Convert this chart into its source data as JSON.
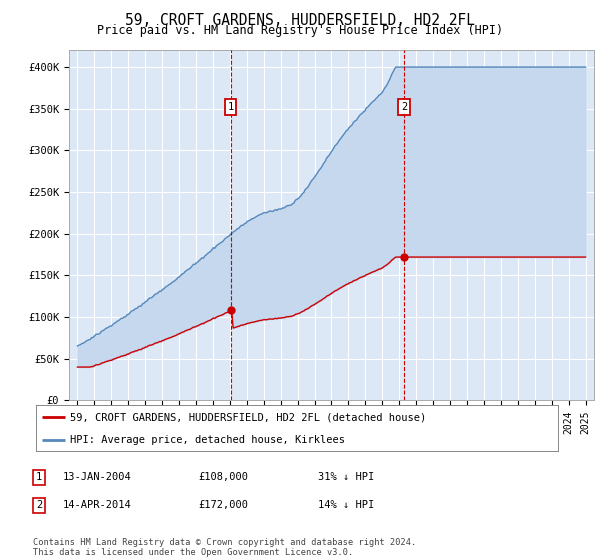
{
  "title": "59, CROFT GARDENS, HUDDERSFIELD, HD2 2FL",
  "subtitle": "Price paid vs. HM Land Registry's House Price Index (HPI)",
  "ylim": [
    0,
    420000
  ],
  "yticks": [
    0,
    50000,
    100000,
    150000,
    200000,
    250000,
    300000,
    350000,
    400000
  ],
  "ytick_labels": [
    "£0",
    "£50K",
    "£100K",
    "£150K",
    "£200K",
    "£250K",
    "£300K",
    "£350K",
    "£400K"
  ],
  "background_color": "#ffffff",
  "plot_bg_color": "#dce8f5",
  "grid_color": "#ffffff",
  "sale1_yr": 2004.04,
  "sale1_price": 108000,
  "sale2_yr": 2014.29,
  "sale2_price": 172000,
  "red_line_color": "#cc0000",
  "blue_line_color": "#5588bb",
  "fill_color": "#c5d8ee",
  "annotation_box_color": "#cc0000",
  "footer_text": "Contains HM Land Registry data © Crown copyright and database right 2024.\nThis data is licensed under the Open Government Licence v3.0.",
  "legend_entry1": "59, CROFT GARDENS, HUDDERSFIELD, HD2 2FL (detached house)",
  "legend_entry2": "HPI: Average price, detached house, Kirklees",
  "table_row1": [
    "1",
    "13-JAN-2004",
    "£108,000",
    "31% ↓ HPI"
  ],
  "table_row2": [
    "2",
    "14-APR-2014",
    "£172,000",
    "14% ↓ HPI"
  ]
}
